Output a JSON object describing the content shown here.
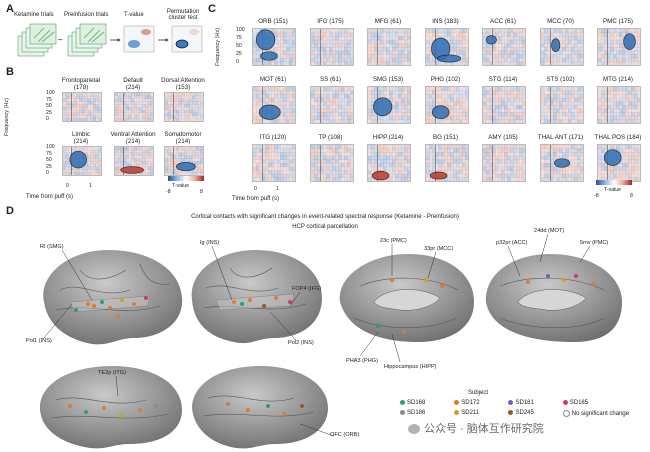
{
  "panel_a": {
    "letter": "A",
    "labels": [
      "Ketamine trials",
      "Preinfusion trials",
      "T-value",
      "Permutation cluster test"
    ]
  },
  "panel_b": {
    "letter": "B",
    "ylabel": "Frequency (Hz)",
    "yticks": [
      "100",
      "75",
      "50",
      "25",
      "0"
    ],
    "xlabel": "Time from puff (s)",
    "xticks": [
      "0",
      "1"
    ],
    "maps": [
      {
        "title": "Frontoparietal",
        "count": "(178)"
      },
      {
        "title": "Default",
        "count": "(214)"
      },
      {
        "title": "Dorsal Attention",
        "count": "(153)"
      },
      {
        "title": "Limbic",
        "count": "(214)"
      },
      {
        "title": "Ventral Attention",
        "count": "(214)"
      },
      {
        "title": "Somatomotor",
        "count": "(214)"
      }
    ],
    "colorbar_label": "T-value",
    "colorbar_ticks": [
      "-8",
      "8"
    ]
  },
  "panel_c": {
    "letter": "C",
    "ylabel": "Frequency (Hz)",
    "yticks": [
      "100",
      "75",
      "50",
      "25",
      "0"
    ],
    "xlabel": "Time from puff (s)",
    "xticks": [
      "0",
      "1"
    ],
    "maps": [
      {
        "title": "ORB (151)"
      },
      {
        "title": "IFG (175)"
      },
      {
        "title": "MFG (61)"
      },
      {
        "title": "INS (183)"
      },
      {
        "title": "ACC (61)"
      },
      {
        "title": "MCC (70)"
      },
      {
        "title": "PMC (175)"
      },
      {
        "title": "MOT (61)"
      },
      {
        "title": "SS (61)"
      },
      {
        "title": "SMG (153)"
      },
      {
        "title": "PHG (102)"
      },
      {
        "title": "STG (114)"
      },
      {
        "title": "STS (102)"
      },
      {
        "title": "MTG (214)"
      },
      {
        "title": "ITG (120)"
      },
      {
        "title": "TP (108)"
      },
      {
        "title": "HIPP (214)"
      },
      {
        "title": "BG (151)"
      },
      {
        "title": "AMY (105)"
      },
      {
        "title": "THAL ANT (171)"
      },
      {
        "title": "THAL POS (184)"
      }
    ],
    "colorbar_label": "T-value",
    "colorbar_ticks": [
      "-8",
      "8"
    ]
  },
  "panel_d": {
    "letter": "D",
    "title": "Cortical contacts with significant changes in event-related spectral response (Ketamine - Preinfusion)",
    "subtitle": "HCP cortical parcellation",
    "callouts": [
      "RI (SMG)",
      "Pol1 (INS)",
      "Ig (INS)",
      "FOP4 (IFG)",
      "Pol2 (INS)",
      "23c (PMC)",
      "33pr (MCC)",
      "PHA3 (PHG)",
      "Hippocampus (HIPP)",
      "p32pr (ACC)",
      "24dd (MOT)",
      "5mv (PMC)",
      "TE2p (ITG)",
      "OFC (ORB)"
    ],
    "legend_title": "Subject",
    "legend": [
      {
        "label": "SD168",
        "color": "#2e9e6a"
      },
      {
        "label": "SD172",
        "color": "#e07b2a"
      },
      {
        "label": "SD181",
        "color": "#7a5cc0"
      },
      {
        "label": "SD185",
        "color": "#d6337a"
      },
      {
        "label": "SD186",
        "color": "#8a8a8a"
      },
      {
        "label": "SD211",
        "color": "#c9a227"
      },
      {
        "label": "SD245",
        "color": "#a0522d"
      },
      {
        "label": "No significant change",
        "color": "#ffffff"
      }
    ]
  },
  "watermark": "公众号 · 脑体互作研究院",
  "colors": {
    "blue": "#2f6fb5",
    "red": "#c0392b",
    "contour": "#1a1a4a"
  }
}
